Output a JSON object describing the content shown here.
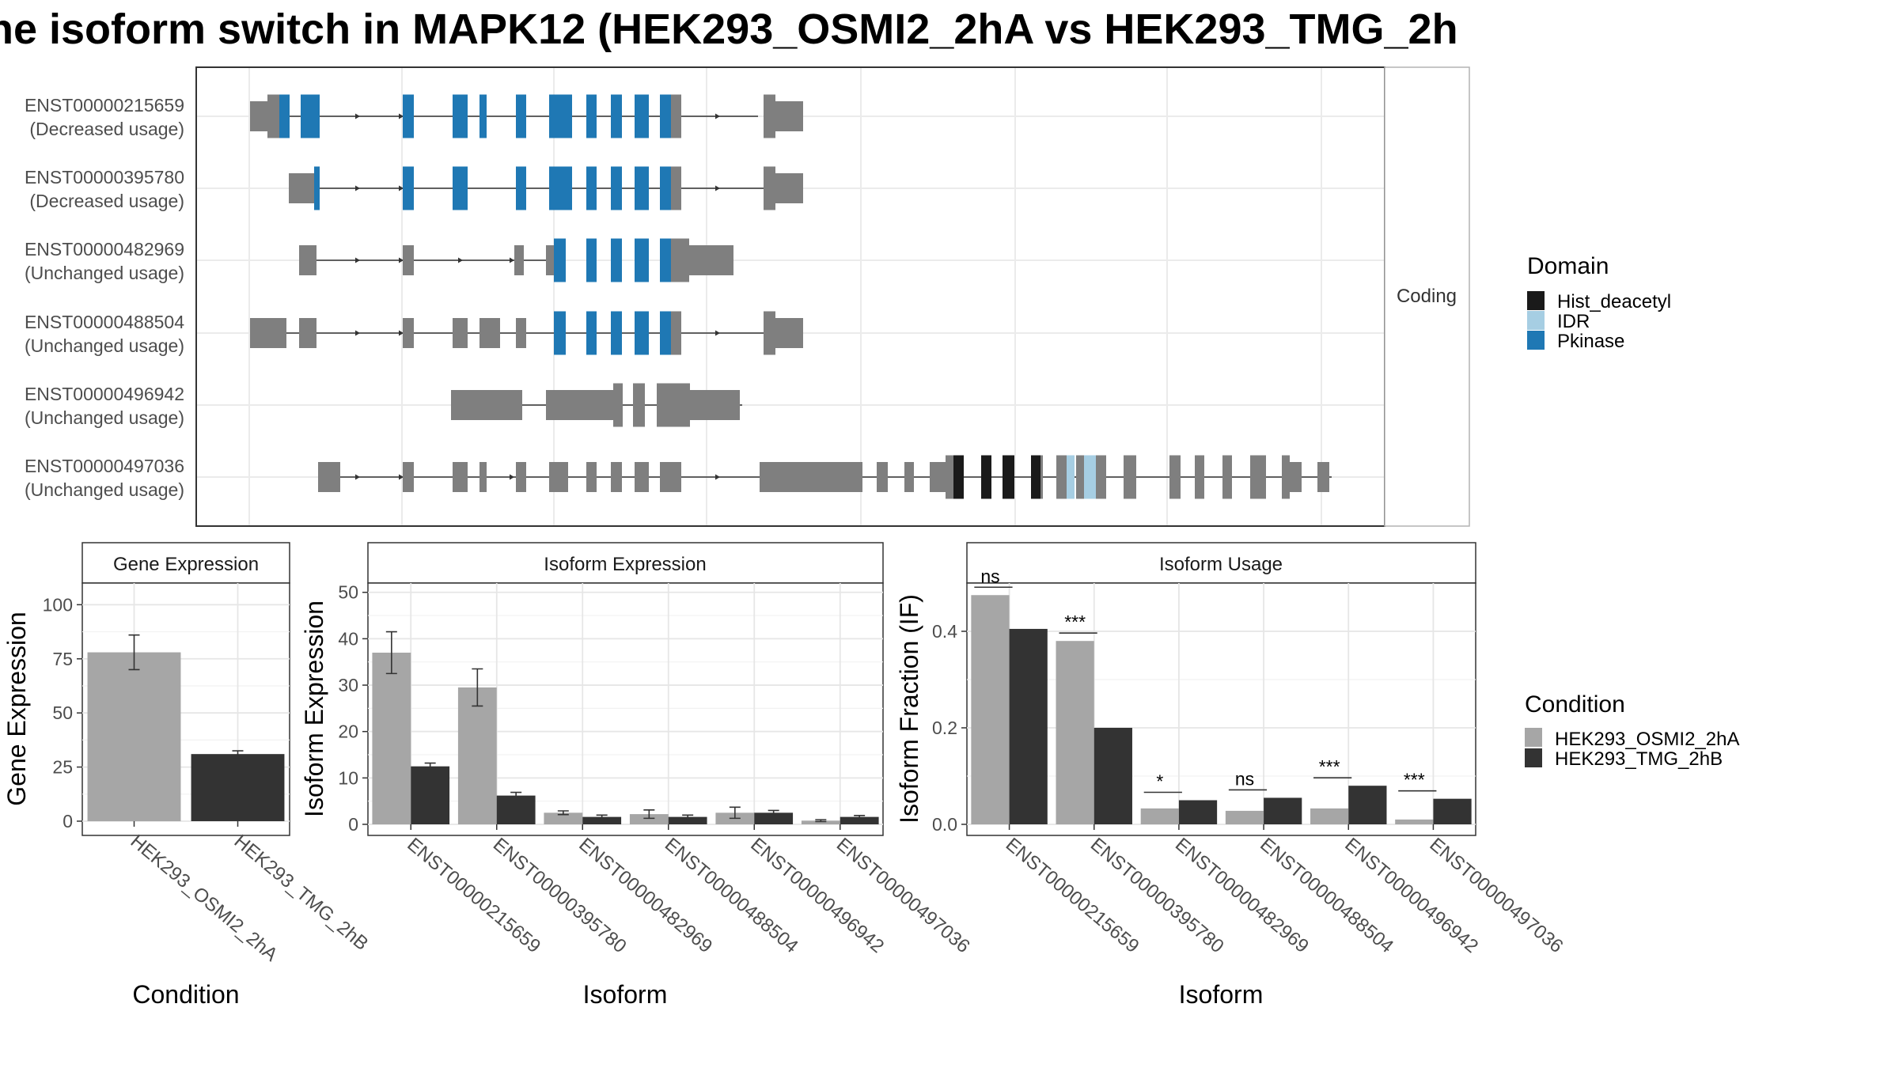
{
  "title": "ne isoform switch in MAPK12 (HEK293_OSMI2_2hA vs HEK293_TMG_2h",
  "colors": {
    "exon_noncoding": "#7f7f7f",
    "Pkinase": "#1f78b4",
    "IDR": "#a6cee3",
    "Hist_deacetyl": "#1a1a1a",
    "cond_A": "#a6a6a6",
    "cond_B": "#333333"
  },
  "chart_data": [
    {
      "type": "gene-structure",
      "strip_label": "Coding",
      "legend_title": "Domain",
      "legend_entries": [
        "Hist_deacetyl",
        "IDR",
        "Pkinase"
      ],
      "isoforms": [
        {
          "id": "ENST00000215659",
          "usage": "(Decreased usage)"
        },
        {
          "id": "ENST00000395780",
          "usage": "(Decreased usage)"
        },
        {
          "id": "ENST00000482969",
          "usage": "(Unchanged usage)"
        },
        {
          "id": "ENST00000488504",
          "usage": "(Unchanged usage)"
        },
        {
          "id": "ENST00000496942",
          "usage": "(Unchanged usage)"
        },
        {
          "id": "ENST00000497036",
          "usage": "(Unchanged usage)"
        }
      ]
    },
    {
      "type": "bar",
      "strip_title": "Gene Expression",
      "xlabel": "Condition",
      "ylabel": "Gene Expression",
      "ylim": [
        0,
        110
      ],
      "yticks": [
        0,
        25,
        50,
        75,
        100
      ],
      "categories": [
        "HEK293_OSMI2_2hA",
        "HEK293_TMG_2hB"
      ],
      "values": [
        78,
        31
      ],
      "errors": [
        [
          70,
          86
        ],
        [
          29.5,
          32.5
        ]
      ]
    },
    {
      "type": "bar",
      "strip_title": "Isoform Expression",
      "xlabel": "Isoform",
      "ylabel": "Isoform Expression",
      "ylim": [
        0,
        52
      ],
      "yticks": [
        0,
        10,
        20,
        30,
        40,
        50
      ],
      "categories": [
        "ENST00000215659",
        "ENST00000395780",
        "ENST00000482969",
        "ENST00000488504",
        "ENST00000496942",
        "ENST00000497036"
      ],
      "series": [
        {
          "name": "HEK293_OSMI2_2hA",
          "values": [
            37,
            29.5,
            2.5,
            2.2,
            2.5,
            0.8
          ],
          "errors": [
            [
              32.5,
              41.5
            ],
            [
              25.5,
              33.5
            ],
            [
              2.1,
              2.9
            ],
            [
              1.3,
              3.1
            ],
            [
              1.3,
              3.7
            ],
            [
              0.6,
              1.0
            ]
          ]
        },
        {
          "name": "HEK293_TMG_2hB",
          "values": [
            12.5,
            6.2,
            1.6,
            1.6,
            2.5,
            1.6
          ],
          "errors": [
            [
              12.0,
              13.2
            ],
            [
              5.6,
              6.9
            ],
            [
              1.2,
              2.0
            ],
            [
              1.2,
              2.0
            ],
            [
              2.0,
              3.0
            ],
            [
              1.3,
              1.9
            ]
          ]
        }
      ]
    },
    {
      "type": "bar",
      "strip_title": "Isoform Usage",
      "xlabel": "Isoform",
      "ylabel": "Isoform Fraction (IF)",
      "ylim": [
        0,
        0.5
      ],
      "yticks": [
        0.0,
        0.2,
        0.4
      ],
      "categories": [
        "ENST00000215659",
        "ENST00000395780",
        "ENST00000482969",
        "ENST00000488504",
        "ENST00000496942",
        "ENST00000497036"
      ],
      "series": [
        {
          "name": "HEK293_OSMI2_2hA",
          "values": [
            0.475,
            0.38,
            0.033,
            0.028,
            0.033,
            0.01
          ]
        },
        {
          "name": "HEK293_TMG_2hB",
          "values": [
            0.405,
            0.2,
            0.05,
            0.055,
            0.08,
            0.053
          ]
        }
      ],
      "significance": [
        "ns",
        "***",
        "*",
        "ns",
        "***",
        "***"
      ],
      "legend_title": "Condition",
      "legend_entries": [
        "HEK293_OSMI2_2hA",
        "HEK293_TMG_2hB"
      ]
    }
  ]
}
